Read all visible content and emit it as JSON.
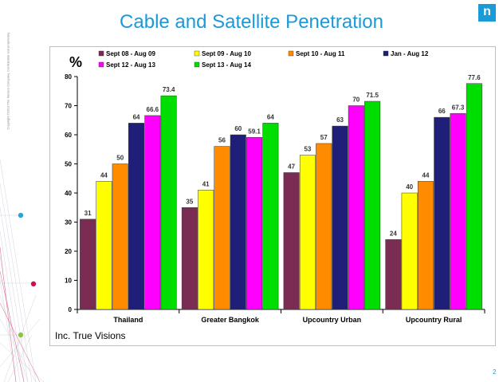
{
  "slide": {
    "title": "Cable and Satellite Penetration",
    "copyright": "Copyright ©2013 The Nielsen Company. Confidential and proprietary.",
    "page_number": "2",
    "logo": "n"
  },
  "colors": {
    "title": "#1a9ad7",
    "series": [
      "#7b2c52",
      "#ffff00",
      "#ff8c00",
      "#1f1f7a",
      "#ff00ff",
      "#00dd00"
    ]
  },
  "chart_data": {
    "type": "bar",
    "title": "",
    "ylabel": "%",
    "xlabel": "",
    "ylim": [
      0,
      80
    ],
    "yticks": [
      0,
      10,
      20,
      30,
      40,
      50,
      60,
      70,
      80
    ],
    "grid": false,
    "legend_position": "top",
    "categories": [
      "Thailand",
      "Greater Bangkok",
      "Upcountry Urban",
      "Upcountry Rural"
    ],
    "series": [
      {
        "name": "Sept 08 - Aug 09",
        "values": [
          31,
          35,
          47,
          24
        ],
        "labels": [
          "31",
          "35",
          "47",
          "24"
        ]
      },
      {
        "name": "Sept 09 - Aug 10",
        "values": [
          44,
          41,
          53,
          40
        ],
        "labels": [
          "44",
          "41",
          "53",
          "40"
        ]
      },
      {
        "name": "Sept 10 - Aug 11",
        "values": [
          50,
          56,
          57,
          44
        ],
        "labels": [
          "50",
          "56",
          "57",
          "44"
        ]
      },
      {
        "name": "Jan - Aug 12",
        "values": [
          64,
          60,
          63,
          66
        ],
        "labels": [
          "64",
          "60",
          "63",
          "66"
        ]
      },
      {
        "name": "Sept 12 - Aug 13",
        "values": [
          66.6,
          59.1,
          70,
          67.3
        ],
        "labels": [
          "66.6",
          "59.1",
          "70",
          "67.3"
        ]
      },
      {
        "name": "Sept 13 - Aug 14",
        "values": [
          73.4,
          64,
          71.5,
          77.6
        ],
        "labels": [
          "73.4",
          "64",
          "71.5",
          "77.6"
        ]
      }
    ],
    "footnote": "Inc. True Visions"
  }
}
